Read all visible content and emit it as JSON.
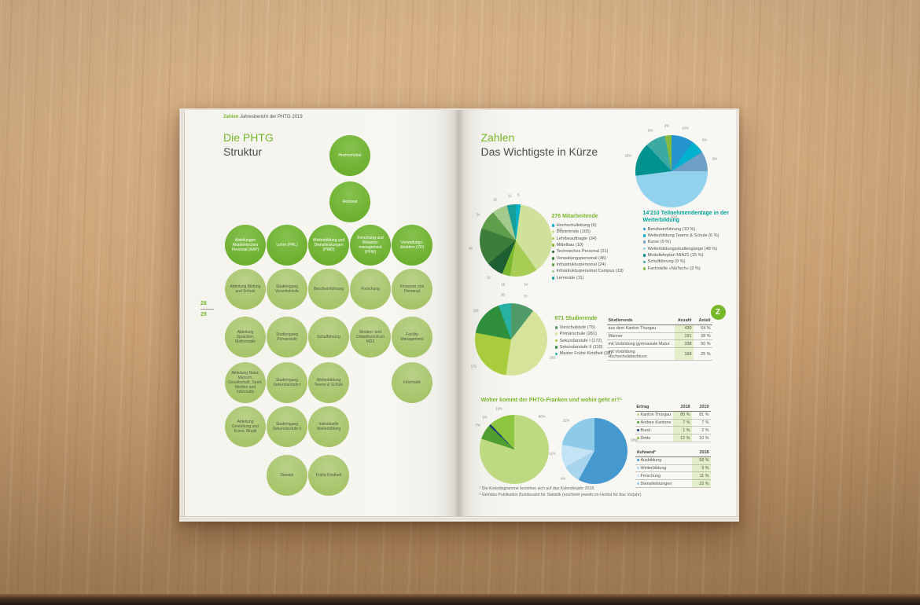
{
  "running_header": {
    "highlight": "Zahlen",
    "rest": " Jahresbericht der PHTG 2019"
  },
  "left_page": {
    "title_line1": "Die PHTG",
    "title_line2": "Struktur",
    "page_number_top": "28",
    "page_number_bottom": "29",
    "org_chart": {
      "circles": [
        {
          "label": "Hochschulrat",
          "col": "mid",
          "row": 0,
          "tone": "dark"
        },
        {
          "label": "Rektorat",
          "col": "mid",
          "row": 1,
          "tone": "dark"
        },
        {
          "label": "Abteilungen Akademisches Personal (AAP)",
          "col": 0,
          "row": 2,
          "tone": "dark"
        },
        {
          "label": "Lehre (PRL)",
          "col": 1,
          "row": 2,
          "tone": "dark"
        },
        {
          "label": "Weiterbildung und Dienstleistungen (PWD)",
          "col": 2,
          "row": 2,
          "tone": "dark"
        },
        {
          "label": "Forschung und Wissens-management (PFW)",
          "col": 3,
          "row": 2,
          "tone": "dark"
        },
        {
          "label": "Verwaltungs-direktion (VD)",
          "col": 4,
          "row": 2,
          "tone": "dark"
        },
        {
          "label": "Abteilung Bildung und Schule",
          "col": 0,
          "row": 3,
          "tone": "light"
        },
        {
          "label": "Studiengang Vorschulstufe",
          "col": 1,
          "row": 3,
          "tone": "light"
        },
        {
          "label": "Berufseinführung",
          "col": 2,
          "row": 3,
          "tone": "light"
        },
        {
          "label": "Forschung",
          "col": 3,
          "row": 3,
          "tone": "light"
        },
        {
          "label": "Finanzen und Personal",
          "col": 4,
          "row": 3,
          "tone": "light"
        },
        {
          "label": "Abteilung Sprachen, Mathematik",
          "col": 0,
          "row": 4,
          "tone": "light"
        },
        {
          "label": "Studiengang Primarstufe",
          "col": 1,
          "row": 4,
          "tone": "light"
        },
        {
          "label": "Schulführung",
          "col": 2,
          "row": 4,
          "tone": "light"
        },
        {
          "label": "Medien- und Didaktikzentrum MDZ",
          "col": 3,
          "row": 4,
          "tone": "light"
        },
        {
          "label": "Facility Management",
          "col": 4,
          "row": 4,
          "tone": "light"
        },
        {
          "label": "Abteilung Natur, Mensch, Gesellschaft, Sport, Medien und Informatik",
          "col": 0,
          "row": 5,
          "tone": "light"
        },
        {
          "label": "Studiengang Sekundarstufe I",
          "col": 1,
          "row": 5,
          "tone": "light"
        },
        {
          "label": "Weiterbildung Teams & Schule",
          "col": 2,
          "row": 5,
          "tone": "light"
        },
        {
          "label": "Informatik",
          "col": 4,
          "row": 5,
          "tone": "light"
        },
        {
          "label": "Abteilung Gestaltung und Kunst, Musik",
          "col": 0,
          "row": 6,
          "tone": "light"
        },
        {
          "label": "Studiengang Sekundarstufe II",
          "col": 1,
          "row": 6,
          "tone": "light"
        },
        {
          "label": "Individuelle Weiterbildung",
          "col": 2,
          "row": 6,
          "tone": "light"
        },
        {
          "label": "Dienste",
          "col": 1,
          "row": 7,
          "tone": "light"
        },
        {
          "label": "Frühe Kindheit",
          "col": 2,
          "row": 7,
          "tone": "light"
        }
      ]
    }
  },
  "right_page": {
    "title_line1": "Zahlen",
    "title_line2": "Das Wichtigste in Kürze",
    "section_title": "Woher kommt der PHTG-Franken und wohin geht er?¹",
    "z_tab": "Z",
    "footnotes": [
      "¹ Die Kreisdiagramme beziehen sich auf das Kalenderjahr 2018.",
      "² Gemäss Publikation Bundesamt für Statistik (erscheint jeweils im Herbst für das Vorjahr)."
    ],
    "tables": [
      {
        "id": "table-studierende",
        "columns": [
          "Studierende",
          "Anzahl",
          "Anteil"
        ],
        "highlight_col": 1,
        "rows": [
          [
            "aus dem Kanton Thurgau",
            "430",
            "64 %"
          ],
          [
            "Männer",
            "191",
            "28 %"
          ],
          [
            "mit Vorbildung gymnasiale Matur",
            "338",
            "50 %"
          ],
          [
            "mit Vorbildung Hochschulabschluss",
            "169",
            "25 %"
          ]
        ]
      },
      {
        "id": "table-ertrag",
        "columns": [
          "Ertrag",
          "2018",
          "2019"
        ],
        "highlight_col": 1,
        "bullets": [
          "#bdd981",
          "#4f9e30",
          "#1d3e6e",
          "#8dc63f"
        ],
        "rows": [
          [
            "Kanton Thurgau",
            "80 %",
            "81 %"
          ],
          [
            "Andere Kantone",
            "7 %",
            "7 %"
          ],
          [
            "Bund",
            "1 %",
            "2 %"
          ],
          [
            "Dritte",
            "12 %",
            "10 %"
          ]
        ]
      },
      {
        "id": "table-aufwand",
        "columns": [
          "Aufwand²",
          "2018"
        ],
        "highlight_col": 1,
        "bullets": [
          "#4599cf",
          "#a8d4ee",
          "#c4e3f4",
          "#8ecbea"
        ],
        "rows": [
          [
            "Ausbildung",
            "58 %"
          ],
          [
            "Weiterbildung",
            "9 %"
          ],
          [
            "Forschung",
            "11 %"
          ],
          [
            "Dienstleistungen",
            "22 %"
          ]
        ]
      }
    ]
  },
  "chart_data": [
    {
      "id": "pie-weiterbildung",
      "type": "pie",
      "title": "14'210 Teilnehmendentage in der Weiterbildung",
      "labels": [
        "Berufseinführung",
        "Weiterbildung Teams & Schule",
        "Kurse",
        "Weiterbildungsstudiengänge",
        "Modullehrplan MIA21",
        "Schulführung",
        "Fachstelle «NaTech»"
      ],
      "values": [
        10,
        6,
        9,
        48,
        15,
        9,
        3
      ],
      "unit": "percent",
      "colors": [
        "#2394ce",
        "#00b1cd",
        "#6f9ec6",
        "#93d2ed",
        "#00928c",
        "#3caaa2",
        "#83ba3f"
      ],
      "show_labels": true,
      "label_suffix": "%",
      "legend_title": "14'210 Teilnehmendentage in der Weiterbildung",
      "legend_title_color": "#00a29a",
      "legend": [
        "Berufseinführung (10 %)",
        "Weiterbildung Teams & Schule (6 %)",
        "Kurse (9 %)",
        "Weiterbildungsstudiengänge (48 %)",
        "Modullehrplan MIA21 (15 %)",
        "Schulführung (9 %)",
        "Fachstelle «NaTech» (3 %)"
      ]
    },
    {
      "id": "pie-mitarbeitende",
      "type": "pie",
      "title": "276 Mitarbeitende",
      "labels": [
        "Hochschulleitung",
        "Dozierende",
        "Lehrbeauftragte",
        "Mittelbau",
        "Technisches Personal",
        "Verwaltungspersonal",
        "Infrastrukturpersonal",
        "Infrastrukturpersonal Campus",
        "Lernende"
      ],
      "values": [
        6,
        105,
        34,
        10,
        21,
        46,
        24,
        19,
        11
      ],
      "unit": "count",
      "colors": [
        "#00aec8",
        "#cfe19b",
        "#a8cd55",
        "#7cb82f",
        "#1e5e33",
        "#3c7d3c",
        "#5f9e4a",
        "#a3c98c",
        "#17a099"
      ],
      "show_labels": true,
      "label_suffix": "",
      "legend_title": "276 Mitarbeitende",
      "legend_title_color": "#76b82a",
      "legend": [
        "Hochschulleitung (6)",
        "Dozierende (105)",
        "Lehrbeauftragte (34)",
        "Mittelbau (10)",
        "Technisches Personal (21)",
        "Verwaltungspersonal (46)",
        "Infrastrukturpersonal (24)",
        "Infrastrukturpersonal Campus (19)",
        "Lernende (11)"
      ]
    },
    {
      "id": "pie-studierende",
      "type": "pie",
      "title": "671 Studierende",
      "labels": [
        "Vorschulstufe",
        "Primarschule",
        "Sekundarstufe I",
        "Sekundarstufe II",
        "Master Frühe Kindheit"
      ],
      "values": [
        70,
        281,
        172,
        110,
        38
      ],
      "unit": "count",
      "colors": [
        "#4f9a66",
        "#d6e49b",
        "#a8cc3e",
        "#2f8f3d",
        "#28b0a3"
      ],
      "show_labels": true,
      "label_suffix": "",
      "legend_title": "671 Studierende",
      "legend_title_color": "#76b82a",
      "legend": [
        "Vorschulstufe (70)",
        "Primarschule (281)",
        "Sekundarstufe I (172)",
        "Sekundarstufe II (110)",
        "Master Frühe Kindheit (38)"
      ]
    },
    {
      "id": "pie-ertrag",
      "type": "pie",
      "title": "Ertrag 2018",
      "labels": [
        "Kanton Thurgau",
        "Andere Kantone",
        "Bund",
        "Dritte"
      ],
      "values": [
        80,
        7,
        1,
        12
      ],
      "unit": "percent",
      "colors": [
        "#bdd981",
        "#4f9e30",
        "#1d3e6e",
        "#8dc63f"
      ],
      "show_labels": true,
      "label_suffix": "%",
      "label_angles": [
        40,
        304,
        318,
        340
      ]
    },
    {
      "id": "pie-aufwand",
      "type": "pie",
      "title": "Aufwand 2018",
      "labels": [
        "Ausbildung",
        "Weiterbildung",
        "Forschung",
        "Dienstleistungen"
      ],
      "values": [
        58,
        9,
        11,
        22
      ],
      "unit": "percent",
      "colors": [
        "#4599cf",
        "#a8d4ee",
        "#c4e3f4",
        "#8ecbea"
      ],
      "show_labels": true,
      "label_suffix": "%",
      "label_angles": [
        75,
        228,
        267,
        318
      ]
    }
  ],
  "colors": {
    "brand_green": "#76b82a",
    "teal": "#00a29a",
    "text_dark": "#4c4b45"
  }
}
